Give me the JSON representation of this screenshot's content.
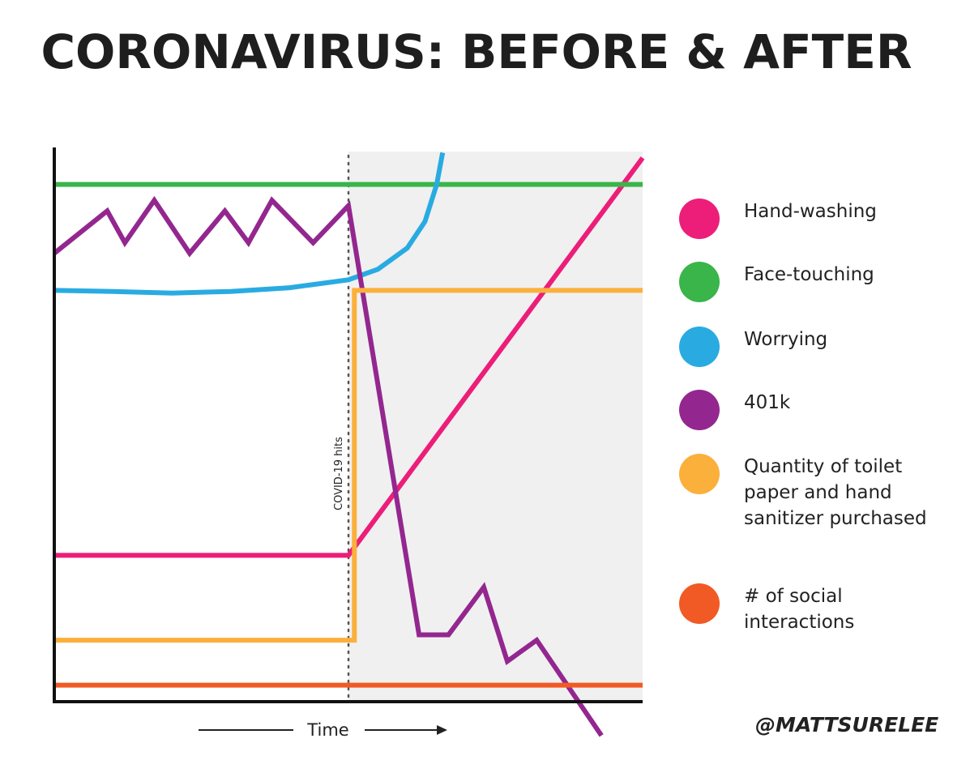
{
  "chart_data": {
    "type": "line",
    "title": "CORONAVIRUS: BEFORE & AFTER",
    "xlabel": "Time",
    "ylabel": "",
    "annotations": [
      {
        "text": "COVID-19 hits",
        "x": 0.5
      }
    ],
    "xlim": [
      0,
      1
    ],
    "ylim": [
      0,
      1
    ],
    "grid": false,
    "legend_placement": "right",
    "shaded_region": {
      "from_x": 0.5,
      "to_x": 1.0,
      "color": "#f0f0f0"
    },
    "series": [
      {
        "name": "Hand-washing",
        "color": "#ec1e79",
        "x": [
          0,
          0.5,
          1.0
        ],
        "y": [
          0.27,
          0.27,
          1.02
        ]
      },
      {
        "name": "Face-touching",
        "color": "#39b54a",
        "x": [
          0,
          1.0
        ],
        "y": [
          0.97,
          0.97
        ]
      },
      {
        "name": "Worrying",
        "color": "#29abe2",
        "x": [
          0,
          0.1,
          0.2,
          0.3,
          0.4,
          0.5,
          0.55,
          0.6,
          0.63,
          0.65,
          0.66
        ],
        "y": [
          0.77,
          0.768,
          0.765,
          0.768,
          0.775,
          0.79,
          0.81,
          0.85,
          0.9,
          0.97,
          1.03
        ]
      },
      {
        "name": "401k",
        "color": "#93278f",
        "x": [
          0,
          0.09,
          0.12,
          0.17,
          0.23,
          0.29,
          0.33,
          0.37,
          0.44,
          0.5,
          0.62,
          0.67,
          0.73,
          0.77,
          0.82,
          0.93
        ],
        "y": [
          0.84,
          0.92,
          0.86,
          0.94,
          0.84,
          0.92,
          0.86,
          0.94,
          0.86,
          0.93,
          0.12,
          0.12,
          0.21,
          0.07,
          0.11,
          -0.07
        ]
      },
      {
        "name": "Quantity of toilet paper and hand sanitizer purchased",
        "color": "#fbb03b",
        "x": [
          0,
          0.51,
          0.51,
          1.0
        ],
        "y": [
          0.11,
          0.11,
          0.77,
          0.77
        ]
      },
      {
        "name": "# of social interactions",
        "color": "#f15a24",
        "x": [
          0,
          1.0
        ],
        "y": [
          0.025,
          0.025
        ]
      }
    ]
  },
  "legend": [
    {
      "label": "Hand-washing",
      "color": "#ec1e79"
    },
    {
      "label": "Face-touching",
      "color": "#39b54a"
    },
    {
      "label": "Worrying",
      "color": "#29abe2"
    },
    {
      "label": "401k",
      "color": "#93278f"
    },
    {
      "label": "Quantity of toilet paper and hand sanitizer purchased",
      "color": "#fbb03b"
    },
    {
      "label": "# of social interactions",
      "color": "#f15a24"
    }
  ],
  "credit": "@MATTSURELEE"
}
